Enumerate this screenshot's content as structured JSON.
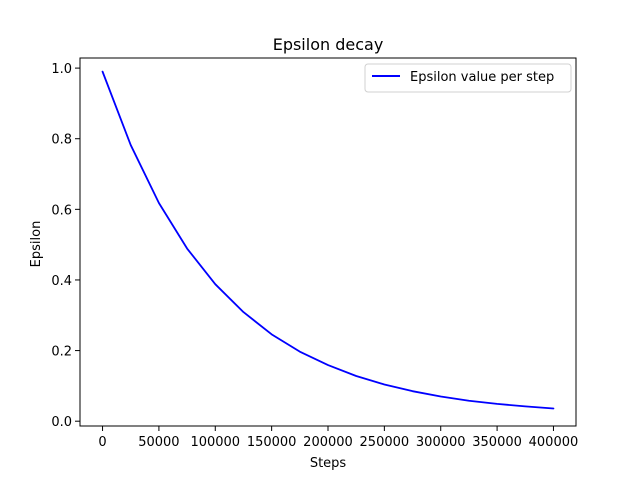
{
  "chart_data": {
    "type": "line",
    "title": "Epsilon decay",
    "xlabel": "Steps",
    "ylabel": "Epsilon",
    "xlim": [
      -20000,
      420000
    ],
    "ylim": [
      -0.0136,
      1.0286
    ],
    "xticks": [
      0,
      50000,
      100000,
      150000,
      200000,
      250000,
      300000,
      350000,
      400000
    ],
    "xtick_labels": [
      "0",
      "50000",
      "100000",
      "150000",
      "200000",
      "250000",
      "300000",
      "350000",
      "400000"
    ],
    "yticks": [
      0.0,
      0.2,
      0.4,
      0.6,
      0.8,
      1.0
    ],
    "ytick_labels": [
      "0.0",
      "0.2",
      "0.4",
      "0.6",
      "0.8",
      "1.0"
    ],
    "grid": false,
    "legend": {
      "location": "upper right",
      "entries": [
        "Epsilon value per step"
      ]
    },
    "series": [
      {
        "name": "Epsilon value per step",
        "color": "#0000ff",
        "x": [
          0,
          25000,
          50000,
          75000,
          100000,
          125000,
          150000,
          175000,
          200000,
          225000,
          250000,
          275000,
          300000,
          325000,
          350000,
          375000,
          400000
        ],
        "y": [
          0.99,
          0.782,
          0.618,
          0.489,
          0.388,
          0.309,
          0.246,
          0.197,
          0.159,
          0.128,
          0.104,
          0.085,
          0.07,
          0.058,
          0.049,
          0.042,
          0.036
        ]
      }
    ]
  }
}
